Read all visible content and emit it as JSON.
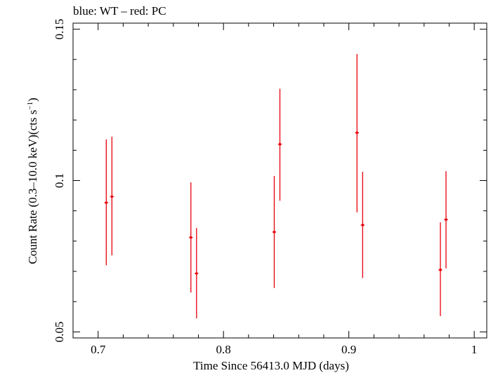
{
  "chart_data": {
    "type": "scatter",
    "title": "blue: WT – red: PC",
    "xlabel": "Time Since 56413.0 MJD (days)",
    "ylabel_main": "Count Rate (0.3–10.0 keV)(cts s",
    "ylabel_sup": "−1",
    "ylabel_close": ")",
    "xlim": [
      0.68,
      1.01
    ],
    "ylim": [
      0.048,
      0.152
    ],
    "x_ticks": [
      0.7,
      0.8,
      0.9,
      1.0
    ],
    "x_tick_labels": [
      "0.7",
      "0.8",
      "0.9",
      "1"
    ],
    "y_ticks": [
      0.05,
      0.1,
      0.15
    ],
    "y_tick_labels": [
      "0.05",
      "0.1",
      "0.15"
    ],
    "grid": false,
    "series": [
      {
        "color": "#e8000b",
        "points": [
          {
            "x": 0.7065,
            "y": 0.0927,
            "xerr": 0.0015,
            "ylo": 0.072,
            "yhi": 0.1136
          },
          {
            "x": 0.711,
            "y": 0.0947,
            "xerr": 0.0015,
            "ylo": 0.0753,
            "yhi": 0.1145
          },
          {
            "x": 0.774,
            "y": 0.0812,
            "xerr": 0.0015,
            "ylo": 0.063,
            "yhi": 0.0994
          },
          {
            "x": 0.7785,
            "y": 0.0693,
            "xerr": 0.0015,
            "ylo": 0.0545,
            "yhi": 0.0843
          },
          {
            "x": 0.8405,
            "y": 0.083,
            "xerr": 0.0015,
            "ylo": 0.0645,
            "yhi": 0.1015
          },
          {
            "x": 0.845,
            "y": 0.112,
            "xerr": 0.0015,
            "ylo": 0.0933,
            "yhi": 0.1303
          },
          {
            "x": 0.9065,
            "y": 0.1158,
            "xerr": 0.0015,
            "ylo": 0.0895,
            "yhi": 0.1418
          },
          {
            "x": 0.911,
            "y": 0.0853,
            "xerr": 0.0015,
            "ylo": 0.0678,
            "yhi": 0.1029
          },
          {
            "x": 0.973,
            "y": 0.0705,
            "xerr": 0.0015,
            "ylo": 0.0552,
            "yhi": 0.0862
          },
          {
            "x": 0.9775,
            "y": 0.0871,
            "xerr": 0.0015,
            "ylo": 0.071,
            "yhi": 0.1031
          }
        ]
      }
    ]
  }
}
